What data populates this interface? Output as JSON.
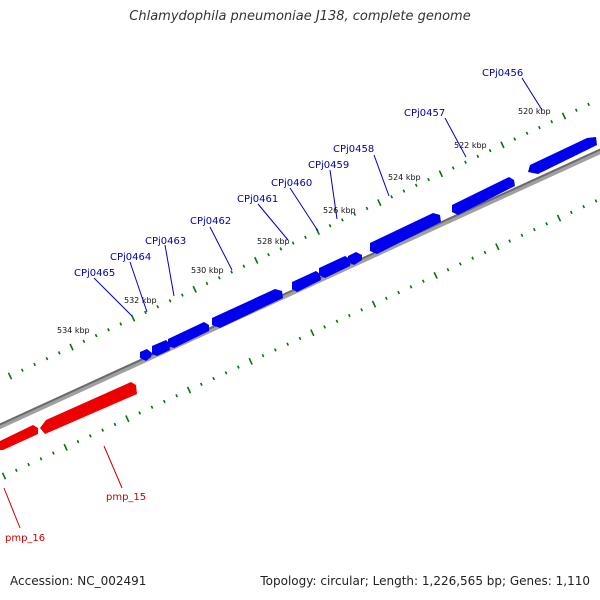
{
  "title": "Chlamydophila pneumoniae J138, complete genome",
  "footer": {
    "accession": "Accession: NC_002491",
    "summary": "Topology: circular; Length: 1,226,565 bp; Genes: 1,110"
  },
  "colors": {
    "forward_gene": "#0000ee",
    "reverse_gene": "#ee0000",
    "backbone": "#808080",
    "ticks": "#007700",
    "forward_label": "#0000aa",
    "reverse_label": "#cc0000"
  },
  "tick_labels": [
    "520 kbp",
    "522 kbp",
    "524 kbp",
    "526 kbp",
    "528 kbp",
    "530 kbp",
    "532 kbp",
    "534 kbp"
  ],
  "forward_genes": [
    "CPj0456",
    "CPj0457",
    "CPj0458",
    "CPj0459",
    "CPj0460",
    "CPj0461",
    "CPj0462",
    "CPj0463",
    "CPj0464",
    "CPj0465"
  ],
  "reverse_genes": [
    "pmp_15",
    "pmp_16"
  ]
}
